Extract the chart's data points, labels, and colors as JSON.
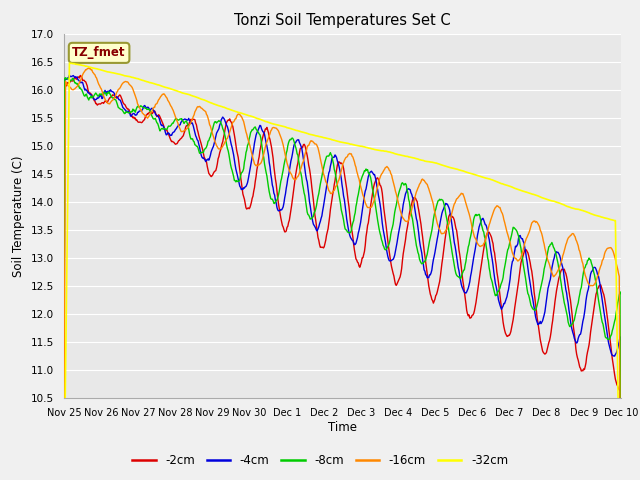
{
  "title": "Tonzi Soil Temperatures Set C",
  "xlabel": "Time",
  "ylabel": "Soil Temperature (C)",
  "ylim": [
    10.5,
    17.0
  ],
  "yticks": [
    10.5,
    11.0,
    11.5,
    12.0,
    12.5,
    13.0,
    13.5,
    14.0,
    14.5,
    15.0,
    15.5,
    16.0,
    16.5,
    17.0
  ],
  "fig_bg": "#f0f0f0",
  "plot_bg": "#e8e8e8",
  "grid_color": "#ffffff",
  "label_box_text": "TZ_fmet",
  "label_box_facecolor": "#ffffcc",
  "label_box_edgecolor": "#999933",
  "label_box_textcolor": "#880000",
  "series": [
    {
      "label": "-2cm",
      "color": "#dd0000",
      "linewidth": 1.0
    },
    {
      "label": "-4cm",
      "color": "#0000dd",
      "linewidth": 1.0
    },
    {
      "label": "-8cm",
      "color": "#00cc00",
      "linewidth": 1.0
    },
    {
      "label": "-16cm",
      "color": "#ff8800",
      "linewidth": 1.0
    },
    {
      "label": "-32cm",
      "color": "#ffff00",
      "linewidth": 1.2
    }
  ],
  "xtick_labels": [
    "Nov 25",
    "Nov 26",
    "Nov 27",
    "Nov 28",
    "Nov 29",
    "Nov 30",
    "Dec 1",
    "Dec 2",
    "Dec 3",
    "Dec 4",
    "Dec 5",
    "Dec 6",
    "Dec 7",
    "Dec 8",
    "Dec 9",
    "Dec 10"
  ],
  "n_points": 720
}
